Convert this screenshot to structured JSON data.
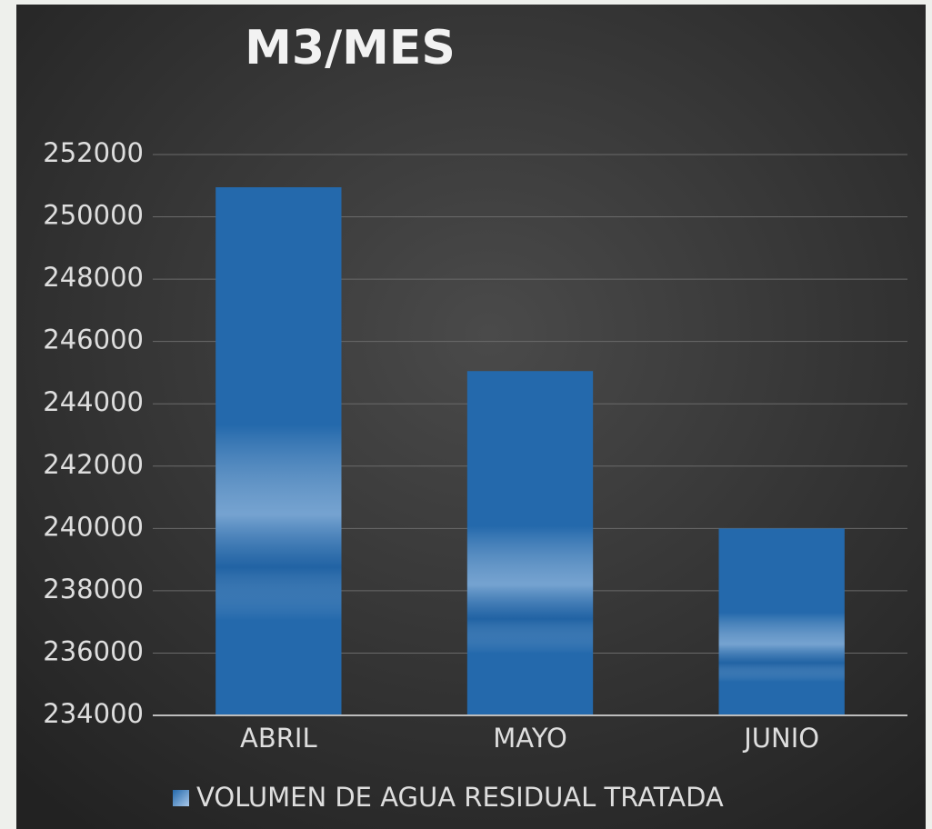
{
  "chart_data": {
    "type": "bar",
    "title": "M3/MES",
    "categories": [
      "ABRIL",
      "MAYO",
      "JUNIO"
    ],
    "series": [
      {
        "name": "VOLUMEN DE AGUA RESIDUAL TRATADA",
        "color": "#2469ac",
        "values": [
          250950,
          245050,
          240000
        ]
      }
    ],
    "ylim": [
      234000,
      252000
    ],
    "yticks": [
      234000,
      236000,
      238000,
      240000,
      242000,
      244000,
      246000,
      248000,
      250000,
      252000
    ],
    "grid": true,
    "legend": "bottom"
  }
}
